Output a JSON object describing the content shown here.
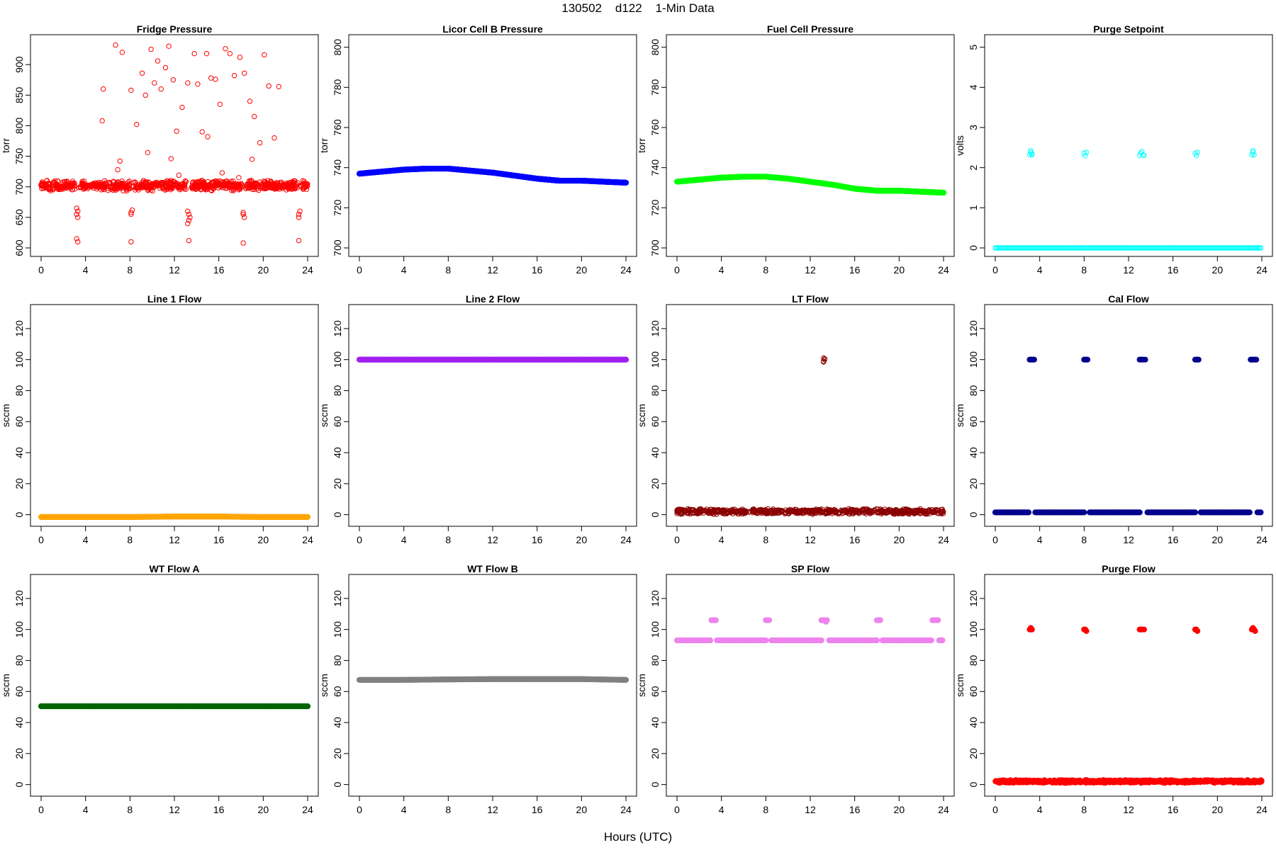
{
  "page": {
    "title": "130502    d122    1-Min Data",
    "xlabel": "Hours (UTC)"
  },
  "chart_data": [
    {
      "type": "scatter",
      "title": "Fridge Pressure",
      "ylabel": "torr",
      "ylim": [
        600,
        935
      ],
      "yticks": [
        600,
        650,
        700,
        750,
        800,
        850,
        900
      ],
      "xlim": [
        0,
        24
      ],
      "xticks": [
        0,
        4,
        8,
        12,
        16,
        20,
        24
      ],
      "color": "#ff0000",
      "marker": "open-circle",
      "main_band": {
        "x_start": 0,
        "x_end": 24,
        "center": 702,
        "spread": 9
      },
      "gaps": [
        [
          3.1,
          3.4
        ],
        [
          8.0,
          8.3
        ],
        [
          13.1,
          13.5
        ],
        [
          18.1,
          18.4
        ],
        [
          23.1,
          23.4
        ]
      ],
      "x": [
        3.2,
        3.3,
        3.2,
        3.3,
        8.1,
        8.2,
        8.1,
        13.2,
        13.3,
        13.4,
        13.2,
        13.3,
        18.2,
        18.3,
        18.2,
        23.2,
        23.3,
        23.2,
        3.2,
        3.3,
        8.1,
        13.3,
        18.2,
        23.2,
        5.6,
        5.5,
        6.7,
        7.3,
        8.1,
        8.6,
        9.1,
        9.4,
        9.9,
        10.2,
        10.5,
        10.8,
        11.2,
        11.5,
        11.9,
        12.2,
        12.7,
        13.2,
        13.8,
        14.1,
        14.5,
        14.9,
        15.3,
        15.7,
        16.1,
        16.6,
        17.0,
        17.4,
        17.9,
        18.3,
        18.8,
        19.2,
        19.7,
        20.1,
        20.5,
        21.0,
        21.4,
        11.7,
        9.6,
        6.9,
        7.1,
        15.0,
        17.8,
        19.0,
        12.4,
        16.3
      ],
      "y": [
        655,
        660,
        665,
        650,
        658,
        662,
        655,
        660,
        655,
        650,
        640,
        645,
        655,
        650,
        658,
        655,
        660,
        650,
        615,
        610,
        610,
        612,
        608,
        612,
        860,
        808,
        932,
        920,
        858,
        802,
        886,
        850,
        925,
        870,
        906,
        860,
        895,
        930,
        875,
        791,
        830,
        870,
        918,
        868,
        790,
        918,
        878,
        876,
        835,
        926,
        918,
        882,
        912,
        886,
        840,
        815,
        772,
        916,
        865,
        780,
        864,
        746,
        756,
        728,
        742,
        782,
        715,
        745,
        719,
        723
      ]
    },
    {
      "type": "line",
      "title": "Licor Cell B Pressure",
      "ylabel": "torr",
      "ylim": [
        700,
        802
      ],
      "yticks": [
        700,
        720,
        740,
        760,
        780,
        800
      ],
      "xlim": [
        0,
        24
      ],
      "xticks": [
        0,
        4,
        8,
        12,
        16,
        20,
        24
      ],
      "color": "#0000ff",
      "marker": "filled-circle",
      "x": [
        0,
        2,
        4,
        6,
        8,
        10,
        12,
        14,
        16,
        17,
        18,
        20,
        22,
        24
      ],
      "y": [
        737,
        738,
        739,
        739.5,
        739.5,
        738.5,
        737.5,
        736,
        734.5,
        734,
        733.5,
        733.5,
        733,
        732.5
      ]
    },
    {
      "type": "line",
      "title": "Fuel Cell Pressure",
      "ylabel": "torr",
      "ylim": [
        700,
        802
      ],
      "yticks": [
        700,
        720,
        740,
        760,
        780,
        800
      ],
      "xlim": [
        0,
        24
      ],
      "xticks": [
        0,
        4,
        8,
        12,
        16,
        20,
        24
      ],
      "color": "#00ff00",
      "marker": "filled-circle",
      "x": [
        0,
        2,
        4,
        6,
        8,
        10,
        12,
        14,
        16,
        17,
        18,
        20,
        22,
        24
      ],
      "y": [
        733,
        734,
        735,
        735.5,
        735.5,
        734.5,
        733,
        731.5,
        729.5,
        729,
        728.5,
        728.5,
        728,
        727.5
      ]
    },
    {
      "type": "scatter",
      "title": "Purge Setpoint",
      "ylabel": "volts",
      "ylim": [
        0,
        5.1
      ],
      "yticks": [
        0,
        1,
        2,
        3,
        4,
        5
      ],
      "xlim": [
        0,
        24
      ],
      "xticks": [
        0,
        4,
        8,
        12,
        16,
        20,
        24
      ],
      "color": "#00ffff",
      "marker": "open-circle",
      "baseline": {
        "value": 0,
        "x_start": 0,
        "x_end": 24
      },
      "x": [
        3.1,
        3.2,
        3.3,
        3.2,
        3.3,
        8.0,
        8.1,
        8.2,
        13.0,
        13.1,
        13.2,
        13.3,
        13.4,
        18.0,
        18.1,
        18.2,
        23.1,
        23.2,
        23.3,
        23.2
      ],
      "y": [
        2.32,
        2.38,
        2.32,
        2.42,
        2.35,
        2.36,
        2.3,
        2.38,
        2.3,
        2.36,
        2.4,
        2.32,
        2.3,
        2.36,
        2.3,
        2.38,
        2.32,
        2.38,
        2.32,
        2.42
      ]
    },
    {
      "type": "line",
      "title": "Line 1 Flow",
      "ylabel": "sccm",
      "ylim": [
        -2,
        130
      ],
      "yticks": [
        0,
        20,
        40,
        60,
        80,
        100,
        120
      ],
      "xlim": [
        0,
        24
      ],
      "xticks": [
        0,
        4,
        8,
        12,
        16,
        20,
        24
      ],
      "color": "#ffa500",
      "marker": "filled-circle",
      "x": [
        0,
        4,
        8,
        12,
        16,
        20,
        24
      ],
      "y": [
        -1.5,
        -1.5,
        -1.5,
        -1.2,
        -1.2,
        -1.5,
        -1.5
      ]
    },
    {
      "type": "line",
      "title": "Line 2 Flow",
      "ylabel": "sccm",
      "ylim": [
        -2,
        130
      ],
      "yticks": [
        0,
        20,
        40,
        60,
        80,
        100,
        120
      ],
      "xlim": [
        0,
        24
      ],
      "xticks": [
        0,
        4,
        8,
        12,
        16,
        20,
        24
      ],
      "color": "#a020f0",
      "marker": "filled-circle",
      "x": [
        0,
        4,
        8,
        12,
        16,
        20,
        24
      ],
      "y": [
        100,
        100,
        100,
        100,
        100,
        100,
        100
      ]
    },
    {
      "type": "scatter",
      "title": "LT Flow",
      "ylabel": "sccm",
      "ylim": [
        -2,
        130
      ],
      "yticks": [
        0,
        20,
        40,
        60,
        80,
        100,
        120
      ],
      "xlim": [
        0,
        24
      ],
      "xticks": [
        0,
        4,
        8,
        12,
        16,
        20,
        24
      ],
      "color": "#8b0000",
      "marker": "open-circle",
      "main_band": {
        "x_start": 0,
        "x_end": 24,
        "center": 2,
        "spread": 2
      },
      "gaps": [
        [
          13.1,
          13.3
        ]
      ],
      "x": [
        13.2,
        13.3,
        13.2,
        13.3,
        13.2
      ],
      "y": [
        101,
        100,
        99,
        100.5,
        98.5
      ]
    },
    {
      "type": "scatter",
      "title": "Cal Flow",
      "ylabel": "sccm",
      "ylim": [
        -2,
        130
      ],
      "yticks": [
        0,
        20,
        40,
        60,
        80,
        100,
        120
      ],
      "xlim": [
        0,
        24
      ],
      "xticks": [
        0,
        4,
        8,
        12,
        16,
        20,
        24
      ],
      "color": "#00008b",
      "marker": "filled-circle",
      "baseline": {
        "value": 1.5,
        "x_start": 0,
        "x_end": 24,
        "gaps": [
          [
            3.1,
            3.6
          ],
          [
            8.0,
            8.4
          ],
          [
            13.0,
            13.6
          ],
          [
            18.0,
            18.4
          ],
          [
            23.0,
            23.6
          ]
        ]
      },
      "x": [
        3.1,
        3.2,
        3.3,
        3.4,
        3.5,
        8.0,
        8.1,
        8.2,
        8.3,
        13.0,
        13.1,
        13.2,
        13.3,
        13.5,
        18.0,
        18.1,
        18.2,
        18.3,
        23.0,
        23.1,
        23.2,
        23.3,
        23.4,
        23.5
      ],
      "y": [
        100,
        100,
        100,
        100,
        100,
        100,
        100,
        100,
        100,
        100,
        100,
        100,
        100,
        100,
        100,
        100,
        100,
        100,
        100,
        100,
        100,
        100,
        100,
        100
      ]
    },
    {
      "type": "line",
      "title": "WT Flow A",
      "ylabel": "sccm",
      "ylim": [
        -2,
        130
      ],
      "yticks": [
        0,
        20,
        40,
        60,
        80,
        100,
        120
      ],
      "xlim": [
        0,
        24
      ],
      "xticks": [
        0,
        4,
        8,
        12,
        16,
        20,
        24
      ],
      "color": "#006400",
      "marker": "filled-circle",
      "x": [
        0,
        4,
        8,
        12,
        16,
        20,
        24
      ],
      "y": [
        50.5,
        50.5,
        50.5,
        50.5,
        50.5,
        50.5,
        50.5
      ]
    },
    {
      "type": "line",
      "title": "WT Flow B",
      "ylabel": "sccm",
      "ylim": [
        -2,
        130
      ],
      "yticks": [
        0,
        20,
        40,
        60,
        80,
        100,
        120
      ],
      "xlim": [
        0,
        24
      ],
      "xticks": [
        0,
        4,
        8,
        12,
        16,
        20,
        24
      ],
      "color": "#808080",
      "marker": "filled-circle",
      "x": [
        0,
        4,
        8,
        12,
        16,
        20,
        24
      ],
      "y": [
        67.5,
        67.5,
        67.8,
        68,
        68,
        68,
        67.5
      ]
    },
    {
      "type": "scatter",
      "title": "SP Flow",
      "ylabel": "sccm",
      "ylim": [
        -2,
        130
      ],
      "yticks": [
        0,
        20,
        40,
        60,
        80,
        100,
        120
      ],
      "xlim": [
        0,
        24
      ],
      "xticks": [
        0,
        4,
        8,
        12,
        16,
        20,
        24
      ],
      "color": "#ee82ee",
      "marker": "filled-circle",
      "baseline": {
        "value": 93,
        "x_start": 0,
        "x_end": 24,
        "gaps": [
          [
            3.1,
            3.6
          ],
          [
            8.0,
            8.4
          ],
          [
            13.0,
            13.6
          ],
          [
            18.0,
            18.4
          ],
          [
            23.0,
            23.6
          ]
        ]
      },
      "x": [
        3.1,
        3.2,
        3.3,
        3.4,
        3.5,
        8.0,
        8.1,
        8.2,
        8.3,
        13.0,
        13.1,
        13.2,
        13.3,
        13.4,
        13.5,
        18.0,
        18.1,
        18.2,
        18.3,
        23.0,
        23.1,
        23.2,
        23.3,
        23.4,
        23.5
      ],
      "y": [
        106,
        106,
        106,
        106,
        106,
        106,
        106,
        106,
        106,
        106,
        106,
        106,
        106,
        105,
        106,
        106,
        106,
        106,
        106,
        106,
        106,
        106,
        106,
        106,
        106
      ]
    },
    {
      "type": "scatter",
      "title": "Purge Flow",
      "ylabel": "sccm",
      "ylim": [
        -2,
        130
      ],
      "yticks": [
        0,
        20,
        40,
        60,
        80,
        100,
        120
      ],
      "xlim": [
        0,
        24
      ],
      "xticks": [
        0,
        4,
        8,
        12,
        16,
        20,
        24
      ],
      "color": "#ff0000",
      "marker": "filled-circle",
      "main_band": {
        "x_start": 0,
        "x_end": 24,
        "center": 2,
        "spread": 1
      },
      "x": [
        3.1,
        3.2,
        3.3,
        3.2,
        8.0,
        8.1,
        8.2,
        13.0,
        13.1,
        13.2,
        13.4,
        18.0,
        18.1,
        18.2,
        23.1,
        23.2,
        23.3,
        23.4
      ],
      "y": [
        100,
        100,
        100,
        101,
        100,
        100,
        99,
        100,
        100,
        100,
        100,
        100,
        100,
        99,
        100,
        101,
        100,
        99
      ]
    }
  ]
}
